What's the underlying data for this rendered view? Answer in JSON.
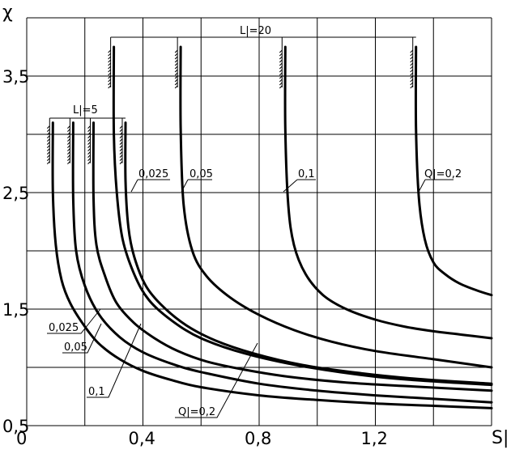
{
  "chart_data": {
    "type": "line",
    "title": "",
    "xlabel": "S|",
    "ylabel": "χ",
    "xlim": [
      0,
      1.6
    ],
    "ylim": [
      0.5,
      4.0
    ],
    "grid": true,
    "legend": "none",
    "x_ticks": [
      {
        "value": 0,
        "label": "0"
      },
      {
        "value": 0.4,
        "label": "0,4"
      },
      {
        "value": 0.8,
        "label": "0,8"
      },
      {
        "value": 1.2,
        "label": "1,2"
      }
    ],
    "y_ticks": [
      {
        "value": 0.5,
        "label": "0,5"
      },
      {
        "value": 1.5,
        "label": "1,5"
      },
      {
        "value": 2.5,
        "label": "2,5"
      },
      {
        "value": 3.5,
        "label": "3,5"
      }
    ],
    "series": [
      {
        "group": "L=5",
        "q": "0.2",
        "x": [
          0.09,
          0.09,
          0.1,
          0.12,
          0.15,
          0.2,
          0.25,
          0.32,
          0.4,
          0.5,
          0.6,
          0.8,
          1.0,
          1.2,
          1.4,
          1.6
        ],
        "y": [
          3.1,
          2.5,
          2.05,
          1.75,
          1.55,
          1.35,
          1.2,
          1.07,
          0.97,
          0.89,
          0.83,
          0.76,
          0.72,
          0.69,
          0.67,
          0.65
        ]
      },
      {
        "group": "L=5",
        "q": "0.1",
        "x": [
          0.16,
          0.16,
          0.17,
          0.2,
          0.25,
          0.32,
          0.4,
          0.5,
          0.6,
          0.8,
          1.0,
          1.2,
          1.4,
          1.6
        ],
        "y": [
          3.1,
          2.45,
          2.0,
          1.7,
          1.45,
          1.26,
          1.13,
          1.03,
          0.96,
          0.86,
          0.8,
          0.76,
          0.73,
          0.7
        ]
      },
      {
        "group": "L=5",
        "q": "0.05",
        "x": [
          0.23,
          0.23,
          0.24,
          0.27,
          0.31,
          0.37,
          0.44,
          0.52,
          0.62,
          0.75,
          0.9,
          1.1,
          1.3,
          1.6
        ],
        "y": [
          3.1,
          2.45,
          2.05,
          1.78,
          1.55,
          1.38,
          1.25,
          1.14,
          1.05,
          0.98,
          0.92,
          0.87,
          0.84,
          0.8
        ]
      },
      {
        "group": "L=5",
        "q": "0.025",
        "x": [
          0.34,
          0.34,
          0.35,
          0.37,
          0.41,
          0.47,
          0.55,
          0.65,
          0.78,
          0.95,
          1.15,
          1.35,
          1.6
        ],
        "y": [
          3.1,
          2.6,
          2.2,
          1.95,
          1.7,
          1.52,
          1.36,
          1.23,
          1.12,
          1.02,
          0.95,
          0.9,
          0.86
        ]
      },
      {
        "group": "L=20",
        "q": "0.025",
        "x": [
          0.3,
          0.3,
          0.31,
          0.33,
          0.37,
          0.42,
          0.5,
          0.6,
          0.75,
          0.95,
          1.2,
          1.4,
          1.6
        ],
        "y": [
          3.75,
          3.0,
          2.5,
          2.1,
          1.8,
          1.58,
          1.4,
          1.25,
          1.12,
          1.01,
          0.92,
          0.88,
          0.85
        ]
      },
      {
        "group": "L=20",
        "q": "0.05",
        "x": [
          0.53,
          0.53,
          0.54,
          0.57,
          0.62,
          0.7,
          0.8,
          0.92,
          1.05,
          1.2,
          1.4,
          1.6
        ],
        "y": [
          3.75,
          3.05,
          2.4,
          2.0,
          1.78,
          1.6,
          1.45,
          1.32,
          1.22,
          1.14,
          1.07,
          1.0
        ]
      },
      {
        "group": "L=20",
        "q": "0.1",
        "x": [
          0.89,
          0.89,
          0.9,
          0.92,
          0.96,
          1.02,
          1.1,
          1.2,
          1.3,
          1.4,
          1.5,
          1.6
        ],
        "y": [
          3.75,
          3.05,
          2.4,
          2.05,
          1.8,
          1.62,
          1.5,
          1.41,
          1.35,
          1.31,
          1.28,
          1.25
        ]
      },
      {
        "group": "L=20",
        "q": "0.2",
        "x": [
          1.34,
          1.34,
          1.35,
          1.37,
          1.4,
          1.44,
          1.49,
          1.55,
          1.6
        ],
        "y": [
          3.75,
          3.05,
          2.45,
          2.1,
          1.9,
          1.8,
          1.72,
          1.66,
          1.62
        ]
      }
    ],
    "annotations": [
      {
        "text": "L|=5"
      },
      {
        "text": "L|=20"
      },
      {
        "text": "0,025"
      },
      {
        "text": "0,05"
      },
      {
        "text": "0,1"
      },
      {
        "text": "Q|=0,2"
      },
      {
        "text": "0,025"
      },
      {
        "text": "0,05"
      },
      {
        "text": "0,1"
      },
      {
        "text": "Q|=0,2"
      }
    ]
  }
}
